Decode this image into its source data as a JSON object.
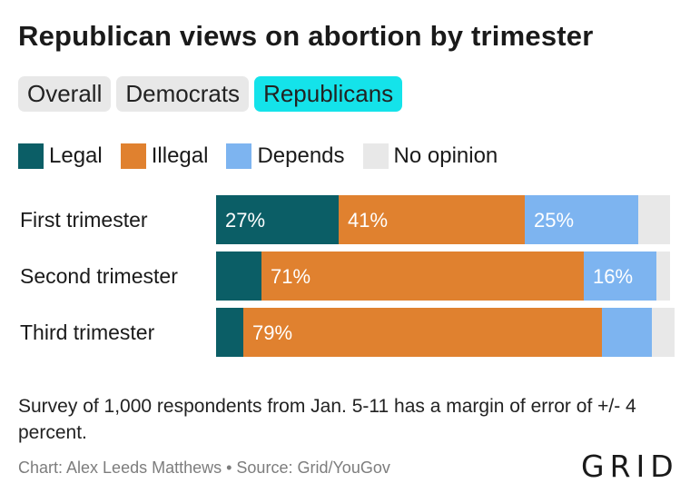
{
  "title": "Republican views on abortion by trimester",
  "tabs": [
    {
      "label": "Overall",
      "active": false
    },
    {
      "label": "Democrats",
      "active": false
    },
    {
      "label": "Republicans",
      "active": true
    }
  ],
  "note": "Survey of 1,000 respondents from Jan. 5-11 has a margin of error of +/- 4 percent.",
  "footer": "Chart: Alex Leeds Matthews • Source: Grid/YouGov",
  "logo": "GRID",
  "colors": {
    "legal": "#0b5e66",
    "illegal": "#e0812f",
    "depends": "#7db4f0",
    "no_opinion": "#e8e8e8",
    "active_tab": "#14e3ea"
  },
  "chart_data": {
    "type": "bar",
    "orientation": "horizontal",
    "stacked": true,
    "categories": [
      "First trimester",
      "Second trimester",
      "Third trimester"
    ],
    "series": [
      {
        "name": "Legal",
        "values": [
          27,
          10,
          6
        ],
        "labels": [
          "27%",
          "",
          ""
        ]
      },
      {
        "name": "Illegal",
        "values": [
          41,
          71,
          79
        ],
        "labels": [
          "41%",
          "71%",
          "79%"
        ]
      },
      {
        "name": "Depends",
        "values": [
          25,
          16,
          11
        ],
        "labels": [
          "25%",
          "16%",
          ""
        ]
      },
      {
        "name": "No opinion",
        "values": [
          7,
          3,
          5
        ],
        "labels": [
          "",
          "",
          ""
        ]
      }
    ],
    "xlim": [
      0,
      100
    ],
    "legend_position": "top-left",
    "grid": false
  }
}
